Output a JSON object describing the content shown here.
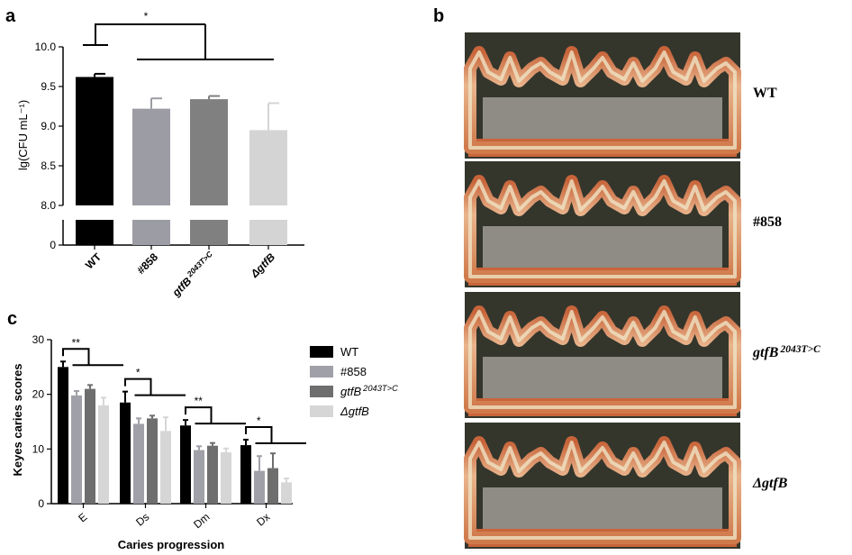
{
  "panel_letters": {
    "a": "a",
    "b": "b",
    "c": "c"
  },
  "chart_data": [
    {
      "type": "bar",
      "panel": "a",
      "ylabel": "lg(CFU mL⁻¹)",
      "categories": [
        "WT",
        "#858",
        "gtfB 2043T>C",
        "ΔgtfB"
      ],
      "category_labels": [
        {
          "main": "WT",
          "sup": ""
        },
        {
          "main": "#858",
          "sup": ""
        },
        {
          "main": "gtfB",
          "sup": "2043T>C"
        },
        {
          "main": "ΔgtfB",
          "sup": ""
        }
      ],
      "values": [
        9.62,
        9.22,
        9.34,
        8.95
      ],
      "errors": [
        0.04,
        0.13,
        0.04,
        0.34
      ],
      "colors": [
        "#000000",
        "#9c9ca4",
        "#808080",
        "#d4d4d4"
      ],
      "y_broken_axis": true,
      "ylim_upper": [
        8.0,
        10.0
      ],
      "ylim_lower": [
        0,
        0.8
      ],
      "yticks_upper": [
        "8.0",
        "8.5",
        "9.0",
        "9.5",
        "10.0"
      ],
      "yticks_lower": [
        "0"
      ],
      "significance": [
        "*"
      ]
    },
    {
      "type": "bar",
      "panel": "c",
      "ylabel": "Keyes caries scores",
      "xlabel": "Caries progression",
      "categories": [
        "E",
        "Ds",
        "Dm",
        "Dx"
      ],
      "ylim": [
        0,
        30
      ],
      "yticks": [
        "0",
        "10",
        "20",
        "30"
      ],
      "series": [
        {
          "name": "WT",
          "name_main": "WT",
          "name_sup": "",
          "color": "#000000",
          "values": [
            25.0,
            18.5,
            14.3,
            10.7
          ],
          "errors": [
            1.0,
            2.0,
            1.0,
            1.0
          ]
        },
        {
          "name": "#858",
          "name_main": "#858",
          "name_sup": "",
          "color": "#a0a0a8",
          "values": [
            19.8,
            14.6,
            9.8,
            6.0
          ],
          "errors": [
            0.8,
            1.0,
            0.7,
            2.7
          ]
        },
        {
          "name": "gtfB 2043T>C",
          "name_main": "gtfB",
          "name_sup": "2043T>C",
          "color": "#6e6e6e",
          "values": [
            21.0,
            15.6,
            10.6,
            6.5
          ],
          "errors": [
            0.7,
            0.5,
            0.5,
            2.7
          ]
        },
        {
          "name": "ΔgtfB",
          "name_main": "ΔgtfB",
          "name_sup": "",
          "color": "#d6d6d6",
          "values": [
            18.0,
            13.3,
            9.4,
            3.9
          ],
          "errors": [
            1.4,
            2.5,
            0.7,
            0.7
          ]
        }
      ],
      "significance": [
        "**",
        "*",
        "**",
        "*"
      ],
      "legend_position": "right"
    }
  ],
  "photo_panel": {
    "labels": [
      {
        "main": "WT",
        "sup": ""
      },
      {
        "main": "#858",
        "sup": ""
      },
      {
        "main": "gtfB",
        "sup": "2043T>C"
      },
      {
        "main": "ΔgtfB",
        "sup": ""
      }
    ]
  }
}
